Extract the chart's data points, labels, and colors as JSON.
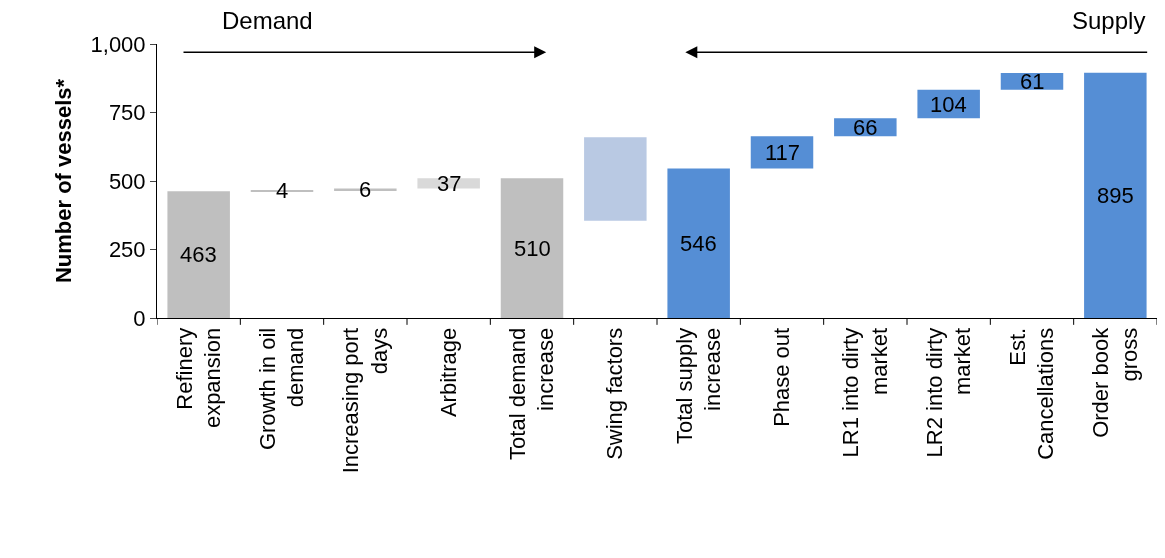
{
  "chart_data": {
    "type": "bar",
    "ylabel": "Number of vessels*",
    "categories": [
      "Refinery expansion",
      "Growth in oil demand",
      "Increasing port days",
      "Arbitrage",
      "Total demand increase",
      "Swing factors",
      "Total supply increase",
      "Phase out",
      "LR1 into dirty market",
      "LR2 into dirty market",
      "Est. Cancellations",
      "Order book gross"
    ],
    "values": [
      463,
      4,
      6,
      37,
      510,
      305,
      546,
      117,
      66,
      104,
      61,
      895
    ],
    "base": [
      0,
      463,
      467,
      473,
      0,
      355,
      0,
      546,
      663,
      729,
      833,
      0
    ],
    "colors": [
      "#bfbfbf",
      "#bfbfbf",
      "#bfbfbf",
      "#d9d9d9",
      "#bfbfbf",
      "#b9c9e3",
      "#558ed5",
      "#558ed5",
      "#558ed5",
      "#558ed5",
      "#558ed5",
      "#558ed5"
    ],
    "value_labels": [
      "463",
      "4",
      "6",
      "37",
      "510",
      null,
      "546",
      "117",
      "66",
      "104",
      "61",
      "895"
    ],
    "ylim": [
      0,
      1000
    ],
    "yticks": [
      0,
      250,
      500,
      750,
      {
        "value": 1000,
        "label": "1,000"
      }
    ],
    "annotations": [
      "Demand",
      "Supply"
    ]
  }
}
